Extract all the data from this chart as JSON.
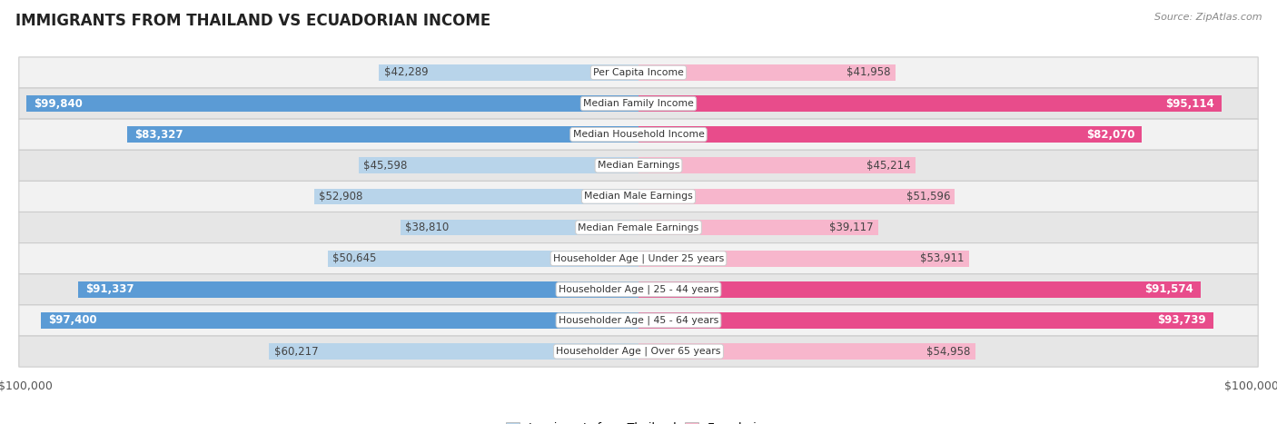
{
  "title": "IMMIGRANTS FROM THAILAND VS ECUADORIAN INCOME",
  "source": "Source: ZipAtlas.com",
  "categories": [
    "Per Capita Income",
    "Median Family Income",
    "Median Household Income",
    "Median Earnings",
    "Median Male Earnings",
    "Median Female Earnings",
    "Householder Age | Under 25 years",
    "Householder Age | 25 - 44 years",
    "Householder Age | 45 - 64 years",
    "Householder Age | Over 65 years"
  ],
  "thailand_values": [
    42289,
    99840,
    83327,
    45598,
    52908,
    38810,
    50645,
    91337,
    97400,
    60217
  ],
  "ecuador_values": [
    41958,
    95114,
    82070,
    45214,
    51596,
    39117,
    53911,
    91574,
    93739,
    54958
  ],
  "thailand_labels": [
    "$42,289",
    "$99,840",
    "$83,327",
    "$45,598",
    "$52,908",
    "$38,810",
    "$50,645",
    "$91,337",
    "$97,400",
    "$60,217"
  ],
  "ecuador_labels": [
    "$41,958",
    "$95,114",
    "$82,070",
    "$45,214",
    "$51,596",
    "$39,117",
    "$53,911",
    "$91,574",
    "$93,739",
    "$54,958"
  ],
  "max_value": 100000,
  "thailand_color_light": "#b8d4ea",
  "thailand_color_dark": "#5b9bd5",
  "ecuador_color_light": "#f7b6cc",
  "ecuador_color_dark": "#e84c8b",
  "bg_row_light": "#f2f2f2",
  "bg_row_dark": "#e6e6e6",
  "bar_height": 0.52,
  "dark_threshold": 70000,
  "legend_thailand": "Immigrants from Thailand",
  "legend_ecuador": "Ecuadorian"
}
